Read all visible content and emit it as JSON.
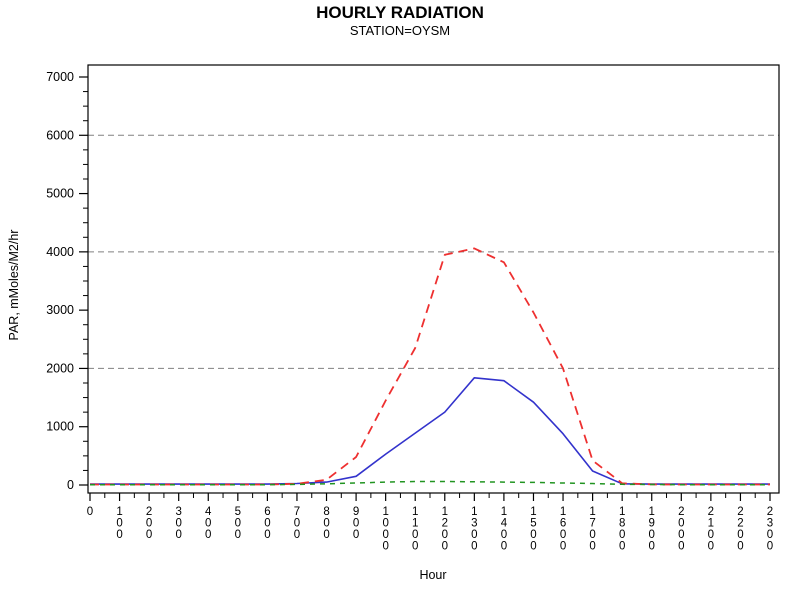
{
  "header": {
    "title": "HOURLY RADIATION",
    "subtitle": "STATION=OYSM"
  },
  "chart_data": {
    "type": "line",
    "title": "HOURLY RADIATION",
    "subtitle": "STATION=OYSM",
    "xlabel": "Hour",
    "ylabel": "PAR, mMoles/M2/hr",
    "x": [
      0,
      100,
      200,
      300,
      400,
      500,
      600,
      700,
      800,
      900,
      1000,
      1100,
      1200,
      1300,
      1400,
      1500,
      1600,
      1700,
      1800,
      1900,
      2000,
      2100,
      2200,
      2300
    ],
    "ylim": [
      0,
      7000
    ],
    "y_ticks": [
      0,
      1000,
      2000,
      3000,
      4000,
      5000,
      6000,
      7000
    ],
    "y_minor_step": 250,
    "gridlines_y": [
      2000,
      4000,
      6000
    ],
    "grid_color": "#808080",
    "axis_color": "#000000",
    "legend": "none",
    "series": [
      {
        "name": "blue-solid",
        "color": "#3333CC",
        "dash": "",
        "width": 1.6,
        "values": [
          15,
          15,
          15,
          15,
          15,
          15,
          15,
          25,
          50,
          150,
          530,
          890,
          1250,
          1840,
          1790,
          1420,
          880,
          240,
          20,
          15,
          15,
          15,
          15,
          15
        ]
      },
      {
        "name": "red-dashed",
        "color": "#EE3030",
        "dash": "9,6",
        "width": 1.8,
        "values": [
          8,
          8,
          8,
          8,
          8,
          8,
          8,
          20,
          90,
          480,
          1450,
          2350,
          3950,
          4060,
          3820,
          2960,
          2000,
          420,
          30,
          10,
          8,
          8,
          8,
          8
        ]
      },
      {
        "name": "green-dotted",
        "color": "#219421",
        "dash": "5,5",
        "width": 1.5,
        "values": [
          5,
          5,
          5,
          5,
          5,
          5,
          5,
          10,
          20,
          35,
          50,
          60,
          60,
          55,
          50,
          45,
          35,
          25,
          12,
          8,
          5,
          5,
          5,
          5
        ]
      }
    ]
  }
}
